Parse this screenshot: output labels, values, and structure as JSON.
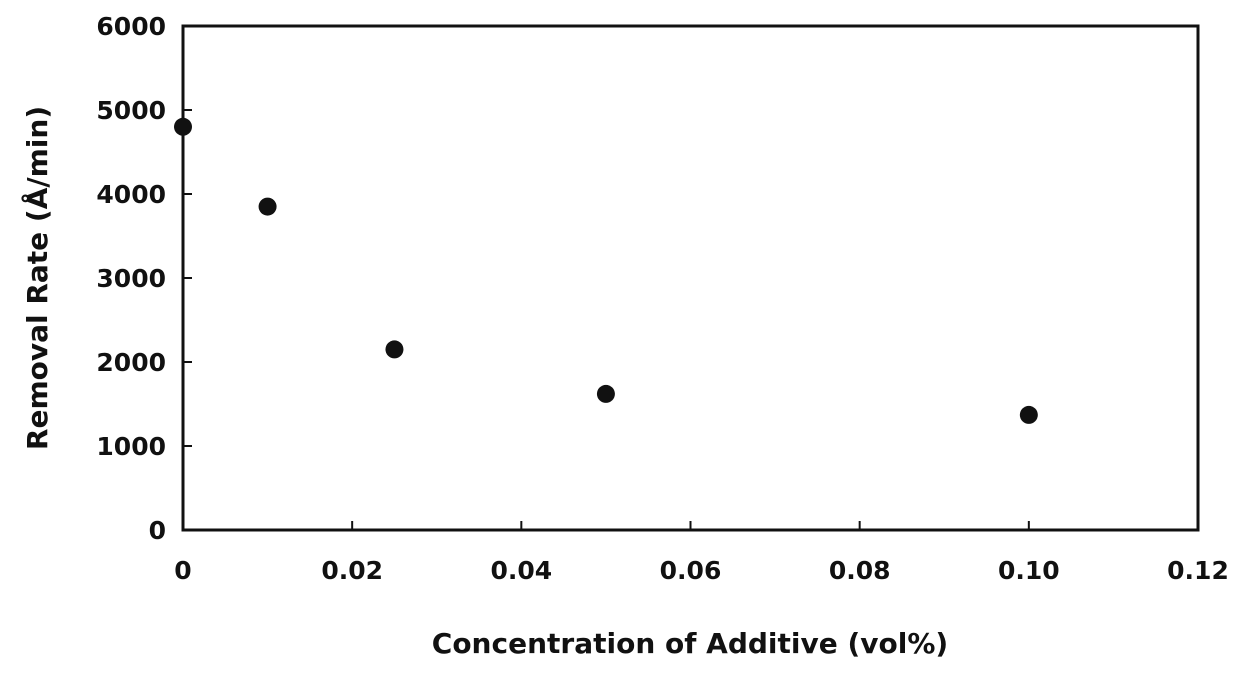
{
  "chart_data": {
    "type": "scatter",
    "title": "",
    "xlabel": "Concentration of Additive (vol%)",
    "ylabel": "Removal Rate (Å/min)",
    "xlim": [
      0,
      0.12
    ],
    "ylim": [
      0,
      6000
    ],
    "grid": false,
    "x_ticks": [
      0,
      0.02,
      0.04,
      0.06,
      0.08,
      0.1,
      0.12
    ],
    "x_tick_labels": [
      "0",
      "0.02",
      "0.04",
      "0.06",
      "0.08",
      "0.10",
      "0.12"
    ],
    "y_ticks": [
      0,
      1000,
      2000,
      3000,
      4000,
      5000,
      6000
    ],
    "y_tick_labels": [
      "0",
      "1000",
      "2000",
      "3000",
      "4000",
      "5000",
      "6000"
    ],
    "series": [
      {
        "color": "#111111",
        "points": [
          {
            "x": 0,
            "y": 4800
          },
          {
            "x": 0.01,
            "y": 3850
          },
          {
            "x": 0.025,
            "y": 2150
          },
          {
            "x": 0.05,
            "y": 1620
          },
          {
            "x": 0.1,
            "y": 1370
          }
        ]
      }
    ]
  }
}
